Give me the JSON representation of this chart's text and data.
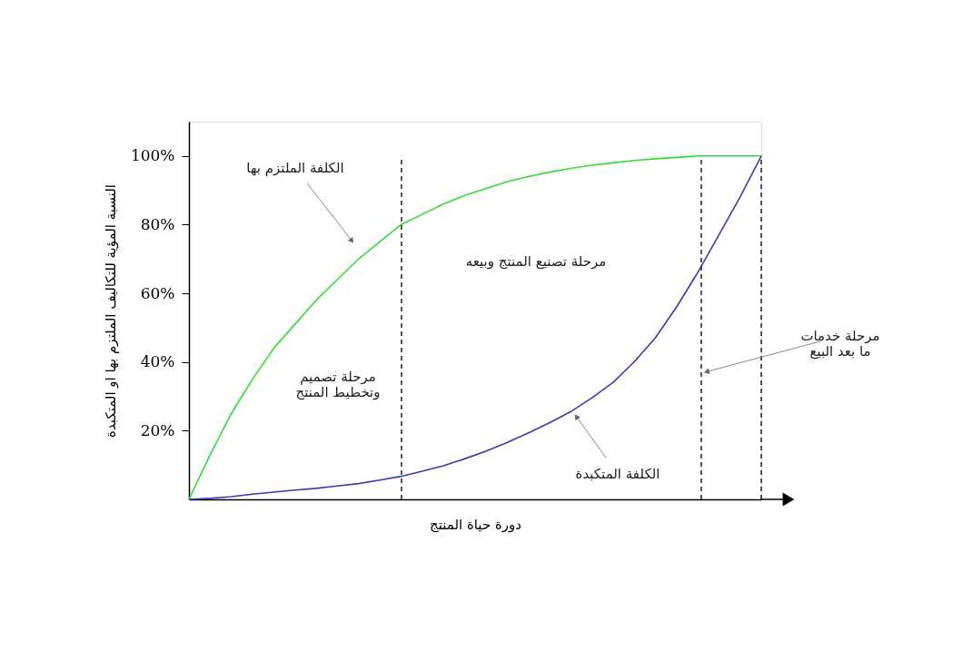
{
  "chart_data": {
    "type": "line",
    "xlabel": "دورة حياة المنتج",
    "ylabel": "النسبة المؤية للتكاليف الملتزم بها او المتكبدة",
    "categories": [
      null,
      null,
      null,
      null,
      null,
      null,
      null,
      null,
      null,
      null,
      null,
      null,
      null,
      null,
      null,
      null,
      null,
      null,
      null,
      null,
      null,
      null,
      null,
      null,
      null,
      null,
      null,
      null
    ],
    "series": [
      {
        "color": "#33dd33",
        "values": [
          0,
          13,
          25,
          35,
          44,
          51,
          58,
          64,
          70,
          75,
          80,
          83,
          86,
          88.5,
          90.5,
          92.5,
          94,
          95.3,
          96.4,
          97.3,
          98,
          98.7,
          99.2,
          99.6,
          100,
          100,
          100,
          100
        ]
      },
      {
        "color": "#3a3ab8",
        "values": [
          0,
          0.3,
          0.8,
          1.5,
          2.1,
          2.7,
          3.2,
          3.9,
          4.6,
          5.6,
          6.7,
          8.2,
          9.8,
          11.8,
          14,
          16.5,
          19.3,
          22.3,
          25.5,
          29.5,
          34,
          40,
          47,
          56,
          66,
          77,
          88,
          100
        ]
      }
    ],
    "ylim": [
      0,
      110
    ],
    "yticks": [
      {
        "value": 20,
        "label": "20%"
      },
      {
        "value": 40,
        "label": "40%"
      },
      {
        "value": 60,
        "label": "60%"
      },
      {
        "value": 80,
        "label": "80%"
      },
      {
        "value": 100,
        "label": "100%"
      }
    ],
    "tick_labels": "y",
    "grid": false,
    "line_style": "solid",
    "marker": "none",
    "annotations": [
      "الكلفة الملتزم بها",
      "مرحلة تصنيع المنتج وبيعه",
      "مرحلة تصميم\nوتخطيط المنتج",
      "مرحلة خدمات\nما بعد البيع",
      "الكلفة المتكبدة"
    ]
  }
}
